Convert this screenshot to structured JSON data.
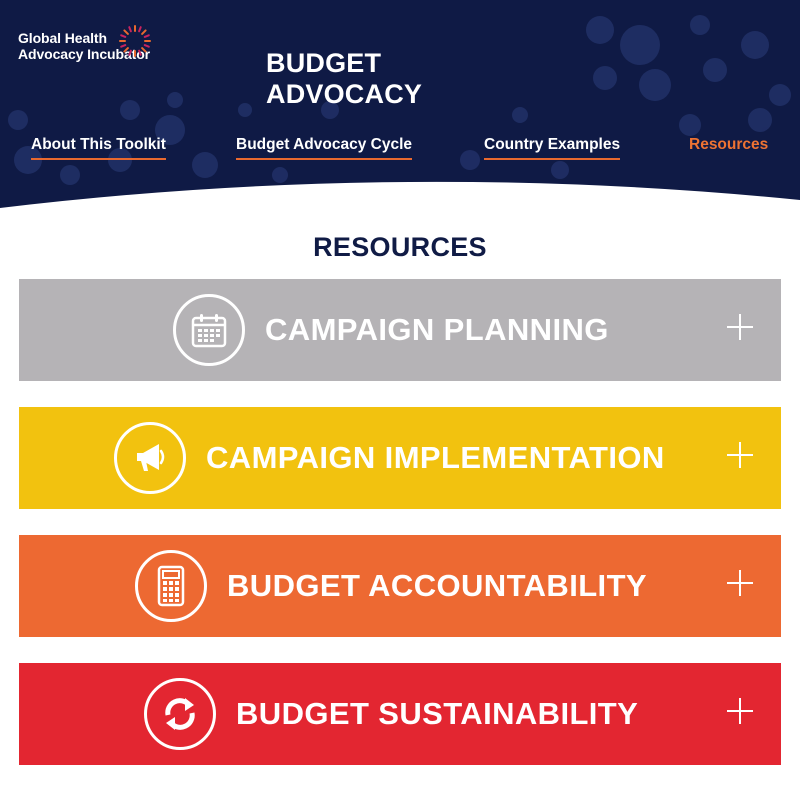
{
  "header": {
    "logo_line1": "Global Health",
    "logo_line2": "Advocacy Incubator",
    "site_title": "BUDGET ADVOCACY",
    "background_color": "#0f1a45",
    "accent_color": "#e8692f"
  },
  "nav": {
    "items": [
      {
        "label": "About This Toolkit",
        "active": false
      },
      {
        "label": "Budget Advocacy Cycle",
        "active": false
      },
      {
        "label": "Country Examples",
        "active": false
      },
      {
        "label": "Resources",
        "active": true
      }
    ]
  },
  "main": {
    "section_title": "RESOURCES",
    "accordions": [
      {
        "label": "CAMPAIGN PLANNING",
        "icon": "calendar-icon",
        "color": "#b5b3b6"
      },
      {
        "label": "CAMPAIGN IMPLEMENTATION",
        "icon": "megaphone-icon",
        "color": "#f2c20f"
      },
      {
        "label": "BUDGET ACCOUNTABILITY",
        "icon": "calculator-icon",
        "color": "#ed6932"
      },
      {
        "label": "BUDGET SUSTAINABILITY",
        "icon": "refresh-cycle-icon",
        "color": "#e32631"
      }
    ]
  }
}
